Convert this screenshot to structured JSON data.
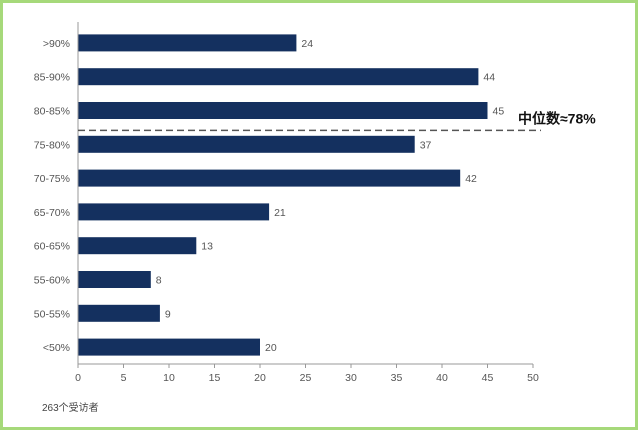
{
  "chart_data": {
    "type": "bar",
    "orientation": "horizontal",
    "categories": [
      ">90%",
      "85-90%",
      "80-85%",
      "75-80%",
      "70-75%",
      "65-70%",
      "60-65%",
      "55-60%",
      "50-55%",
      "<50%"
    ],
    "values": [
      24,
      44,
      45,
      37,
      42,
      21,
      13,
      8,
      9,
      20
    ],
    "xlim": [
      0,
      50
    ],
    "xticks": [
      0,
      5,
      10,
      15,
      20,
      25,
      30,
      35,
      40,
      45,
      50
    ],
    "bar_color": "#14305f",
    "grid": false,
    "annotation": {
      "text": "中位数≈78%",
      "category": "75-80%",
      "line_style": "dashed"
    },
    "note": "263个受访者"
  },
  "colors": {
    "frame_border": "#a6d97a",
    "axis": "#999999",
    "median_line": "#555555"
  }
}
